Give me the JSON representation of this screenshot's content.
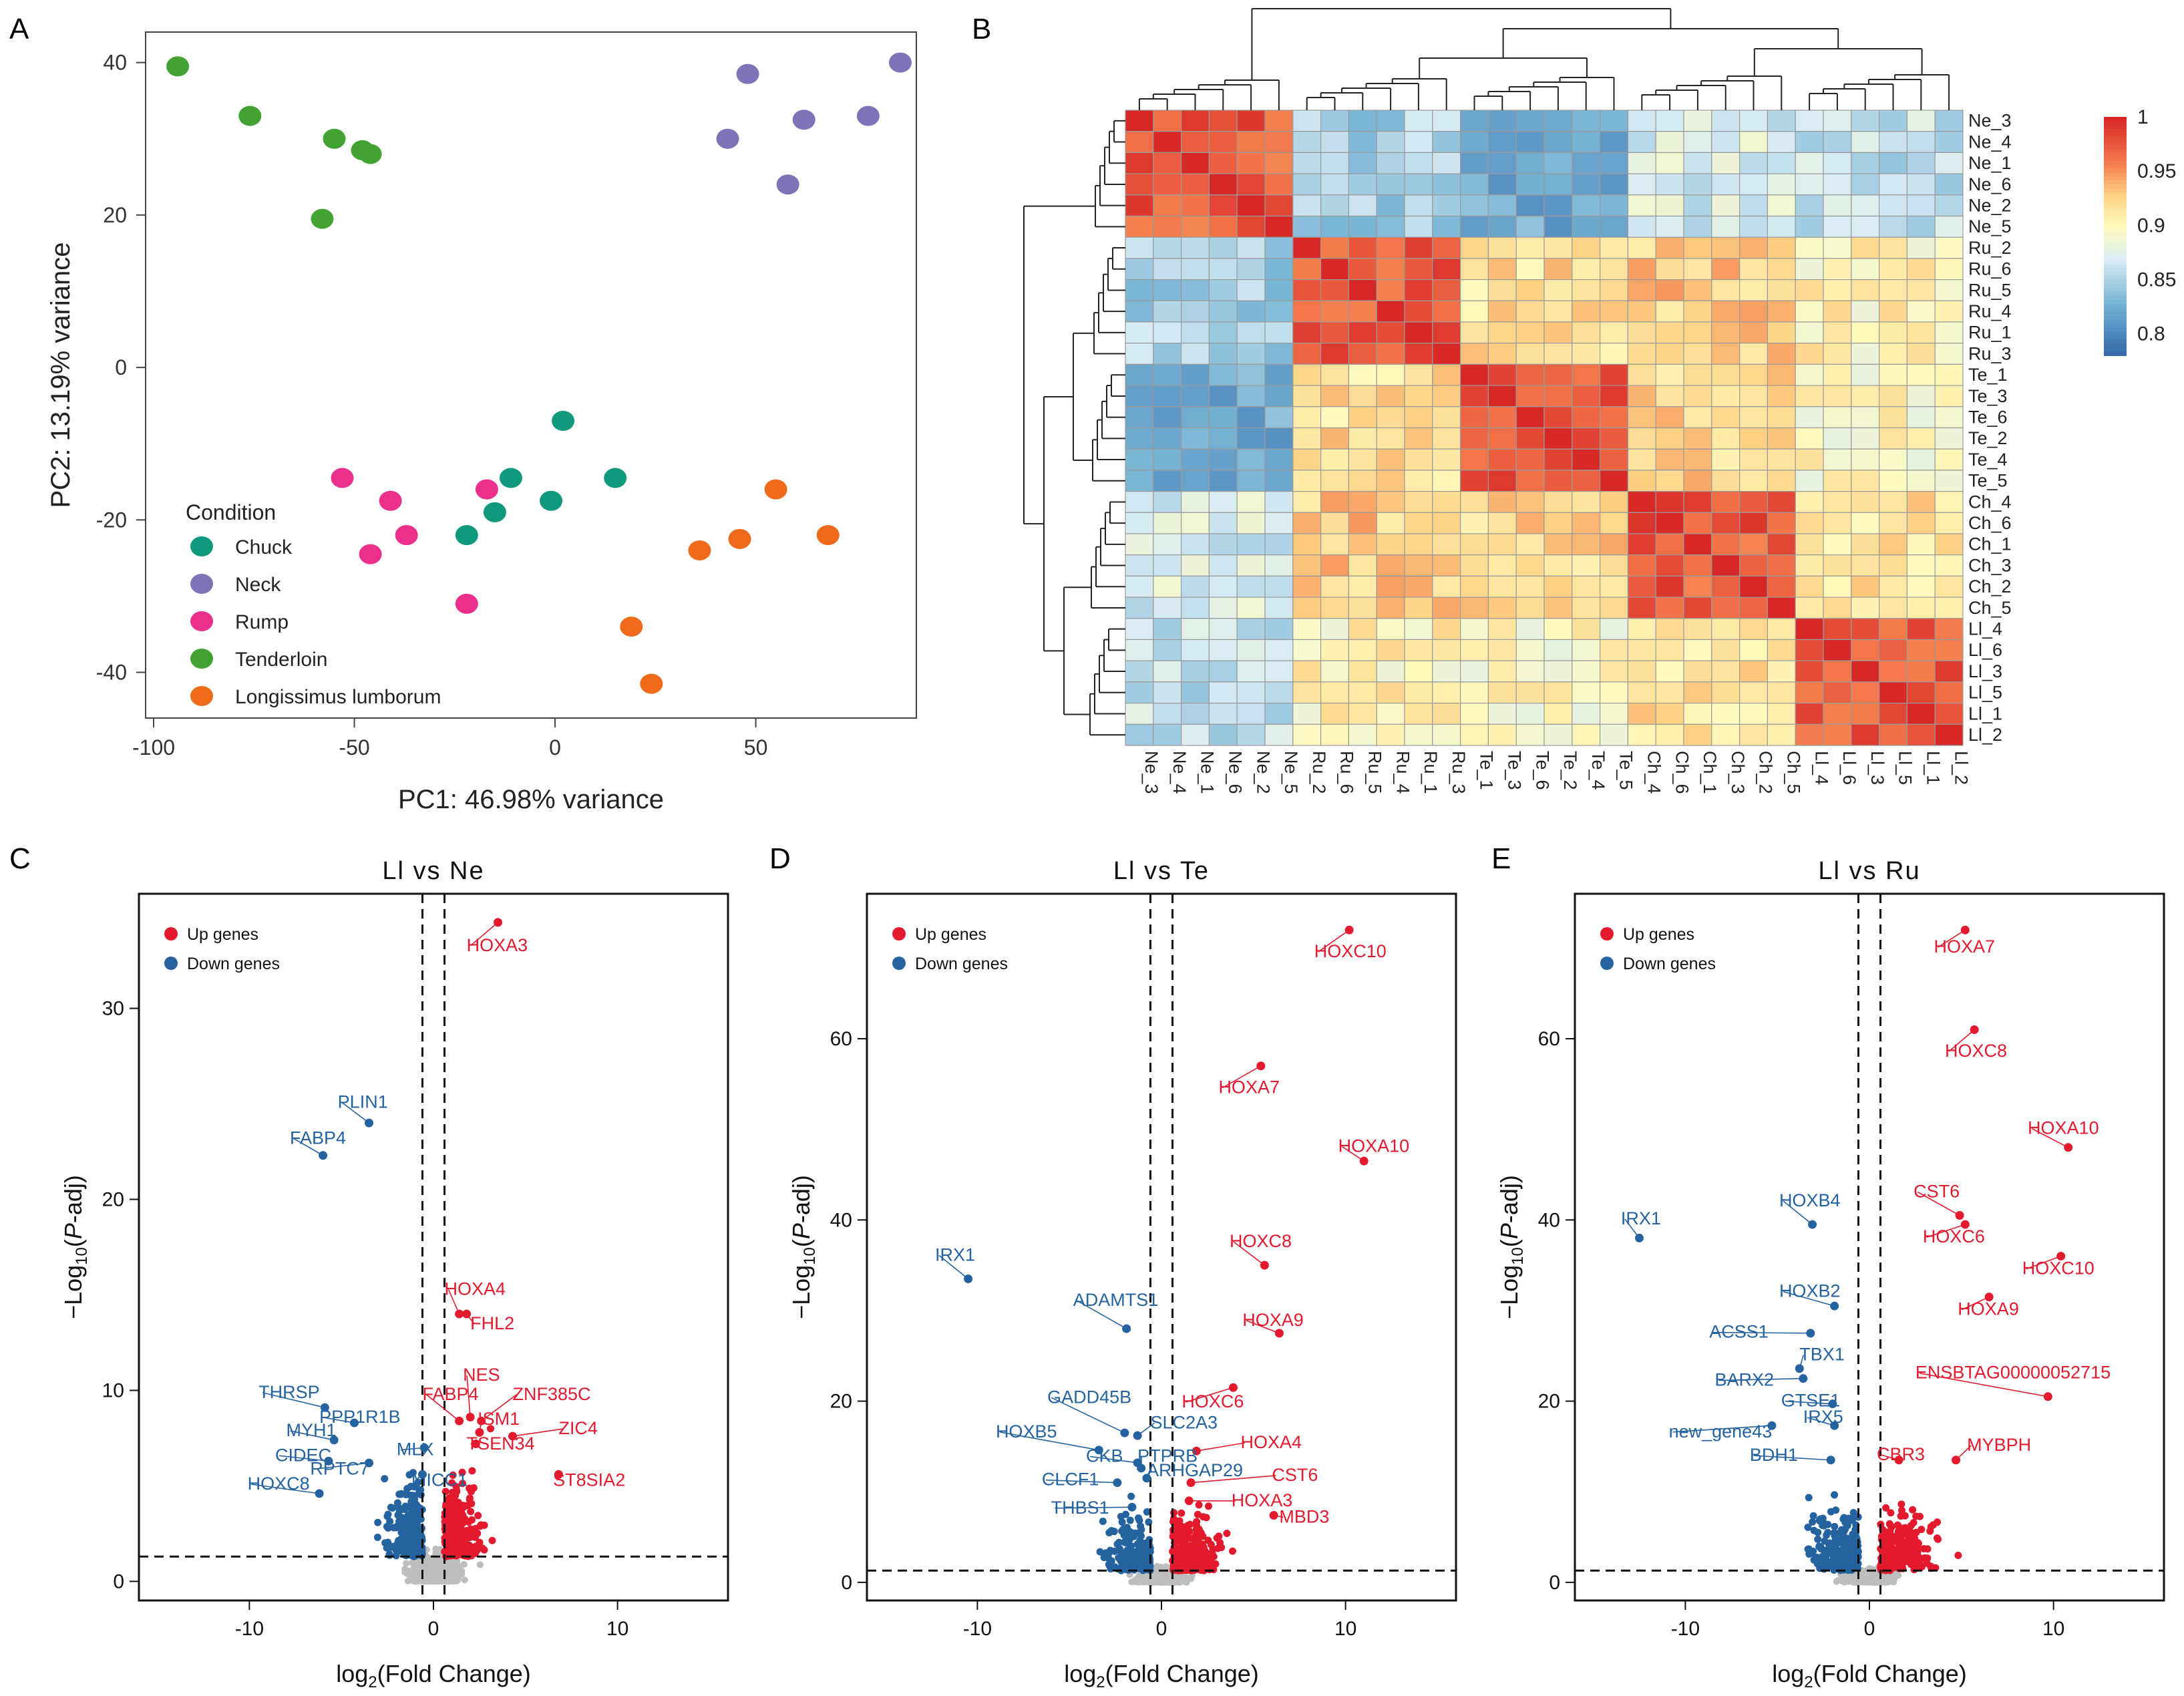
{
  "panels": {
    "a": "A",
    "b": "B",
    "c": "C",
    "d": "D",
    "e": "E"
  },
  "colors": {
    "chuck": "#0f9a7e",
    "neck": "#7d74b8",
    "rump": "#ea2f8c",
    "tenderloin": "#43a332",
    "longissimus": "#ef6a1a",
    "up": "#e31a2e",
    "down": "#2463a0",
    "ns": "#bdbdbd"
  },
  "chart_data": [
    {
      "type": "scatter",
      "id": "pca",
      "xlabel": "PC1: 46.98% variance",
      "ylabel": "PC2: 13.19% variance",
      "xlim": [
        -102,
        90
      ],
      "ylim": [
        -46,
        44
      ],
      "xticks": [
        -100,
        -50,
        0,
        50
      ],
      "yticks": [
        -40,
        -20,
        0,
        20,
        40
      ],
      "legend_title": "Condition",
      "legend_position": "bottom-left",
      "series": [
        {
          "name": "Chuck",
          "color": "#0f9a7e",
          "points": [
            [
              2,
              -7
            ],
            [
              -11,
              -14.5
            ],
            [
              -15,
              -19
            ],
            [
              -1,
              -17.5
            ],
            [
              15,
              -14.5
            ],
            [
              -22,
              -22
            ]
          ]
        },
        {
          "name": "Neck",
          "color": "#7d74b8",
          "points": [
            [
              48,
              38.5
            ],
            [
              86,
              40
            ],
            [
              43,
              30
            ],
            [
              62,
              32.5
            ],
            [
              78,
              33
            ],
            [
              58,
              24
            ]
          ]
        },
        {
          "name": "Rump",
          "color": "#ea2f8c",
          "points": [
            [
              -53,
              -14.5
            ],
            [
              -41,
              -17.5
            ],
            [
              -17,
              -16
            ],
            [
              -37,
              -22
            ],
            [
              -46,
              -24.5
            ],
            [
              -22,
              -31
            ]
          ]
        },
        {
          "name": "Tenderloin",
          "color": "#43a332",
          "points": [
            [
              -94,
              39.5
            ],
            [
              -76,
              33
            ],
            [
              -55,
              30
            ],
            [
              -48,
              28.5
            ],
            [
              -46,
              28
            ],
            [
              -58,
              19.5
            ]
          ]
        },
        {
          "name": "Longissimus lumborum",
          "color": "#ef6a1a",
          "points": [
            [
              55,
              -16
            ],
            [
              68,
              -22
            ],
            [
              46,
              -22.5
            ],
            [
              36,
              -24
            ],
            [
              19,
              -34
            ],
            [
              24,
              -41.5
            ]
          ]
        }
      ]
    },
    {
      "type": "heatmap",
      "id": "correlation",
      "labels": [
        "Ne_3",
        "Ne_4",
        "Ne_1",
        "Ne_6",
        "Ne_2",
        "Ne_5",
        "Ru_2",
        "Ru_6",
        "Ru_5",
        "Ru_4",
        "Ru_1",
        "Ru_3",
        "Te_1",
        "Te_3",
        "Te_6",
        "Te_2",
        "Te_4",
        "Te_5",
        "Ch_4",
        "Ch_6",
        "Ch_1",
        "Ch_3",
        "Ch_2",
        "Ch_5",
        "Ll_4",
        "Ll_6",
        "Ll_3",
        "Ll_5",
        "Ll_1",
        "Ll_2"
      ],
      "scale_ticks": [
        "1",
        "0.95",
        "0.9",
        "0.85",
        "0.8"
      ],
      "scale_range": [
        0.78,
        1
      ],
      "within_group": 0.975,
      "block_similarity": {
        "Ne": {
          "Ne": 0.975,
          "Ru": 0.85,
          "Te": 0.82,
          "Ch": 0.87,
          "Ll": 0.86
        },
        "Ru": {
          "Ne": 0.85,
          "Ru": 0.975,
          "Te": 0.92,
          "Ch": 0.93,
          "Ll": 0.905
        },
        "Te": {
          "Ne": 0.82,
          "Ru": 0.92,
          "Te": 0.975,
          "Ch": 0.925,
          "Ll": 0.9
        },
        "Ch": {
          "Ne": 0.87,
          "Ru": 0.93,
          "Te": 0.925,
          "Ch": 0.975,
          "Ll": 0.915
        },
        "Ll": {
          "Ne": 0.86,
          "Ru": 0.905,
          "Te": 0.9,
          "Ch": 0.915,
          "Ll": 0.975
        }
      }
    },
    {
      "type": "scatter",
      "id": "volcano_ne",
      "title": "Ll vs Ne",
      "xlabel": "log2(Fold Change)",
      "ylabel": "-Log10(P-adj)",
      "xlim": [
        -16,
        16
      ],
      "ylim": [
        -1,
        36
      ],
      "xticks": [
        -10,
        0,
        10
      ],
      "yticks": [
        0,
        10,
        20,
        30
      ],
      "fc_cut": 0.6,
      "p_cut": 1.3,
      "legend": [
        "Up genes",
        "Down genes"
      ],
      "up_labels": [
        {
          "name": "HOXA3",
          "x": 3.5,
          "y": 34.5,
          "lx": 1.8,
          "ly": 33
        },
        {
          "name": "HOXA4",
          "x": 1.4,
          "y": 14,
          "lx": 0.6,
          "ly": 15
        },
        {
          "name": "FHL2",
          "x": 1.8,
          "y": 14,
          "lx": 2.0,
          "ly": 13.2
        },
        {
          "name": "NES",
          "x": 2.0,
          "y": 8.6,
          "lx": 1.6,
          "ly": 10.5
        },
        {
          "name": "FABP4",
          "x": 1.4,
          "y": 8.4,
          "lx": -0.6,
          "ly": 9.5
        },
        {
          "name": "ZNF385C",
          "x": 2.6,
          "y": 8.4,
          "lx": 4.3,
          "ly": 9.5
        },
        {
          "name": "ISM1",
          "x": 2.5,
          "y": 7.8,
          "lx": 2.4,
          "ly": 8.2
        },
        {
          "name": "ZIC4",
          "x": 4.3,
          "y": 7.6,
          "lx": 6.8,
          "ly": 7.7
        },
        {
          "name": "TSEN34",
          "x": 2.3,
          "y": 7.2,
          "lx": 1.8,
          "ly": 6.9
        },
        {
          "name": "ST8SIA2",
          "x": 6.8,
          "y": 5.6,
          "lx": 6.5,
          "ly": 5.0
        }
      ],
      "down_labels": [
        {
          "name": "PLIN1",
          "x": -3.5,
          "y": 24,
          "lx": -5.2,
          "ly": 24.8
        },
        {
          "name": "FABP4",
          "x": -6,
          "y": 22.3,
          "lx": -7.8,
          "ly": 22.9
        },
        {
          "name": "THRSP",
          "x": -5.9,
          "y": 9.1,
          "lx": -9.5,
          "ly": 9.6
        },
        {
          "name": "PPP1R1B",
          "x": -4.3,
          "y": 8.3,
          "lx": -6.2,
          "ly": 8.3
        },
        {
          "name": "MYH1",
          "x": -5.4,
          "y": 7.4,
          "lx": -8.0,
          "ly": 7.6
        },
        {
          "name": "MLX",
          "x": -0.5,
          "y": 7.0,
          "lx": -2.0,
          "ly": 6.6
        },
        {
          "name": "CIDEC",
          "x": -5.7,
          "y": 6.3,
          "lx": -8.6,
          "ly": 6.3
        },
        {
          "name": "RPTC7",
          "x": -3.5,
          "y": 6.2,
          "lx": -6.7,
          "ly": 5.6
        },
        {
          "name": "MICC1",
          "x": -0.6,
          "y": 5.6,
          "lx": -1.2,
          "ly": 5.0
        },
        {
          "name": "HOXC8",
          "x": -6.2,
          "y": 4.6,
          "lx": -10.1,
          "ly": 4.8
        }
      ]
    },
    {
      "type": "scatter",
      "id": "volcano_te",
      "title": "Ll vs Te",
      "xlabel": "log2(Fold Change)",
      "ylabel": "-Log10(P-adj)",
      "xlim": [
        -16,
        16
      ],
      "ylim": [
        -2,
        76
      ],
      "xticks": [
        -10,
        0,
        10
      ],
      "yticks": [
        0,
        20,
        40,
        60
      ],
      "fc_cut": 0.6,
      "p_cut": 1.3,
      "legend": [
        "Up genes",
        "Down genes"
      ],
      "up_labels": [
        {
          "name": "HOXC10",
          "x": 10.2,
          "y": 72,
          "lx": 8.3,
          "ly": 69
        },
        {
          "name": "HOXA7",
          "x": 5.4,
          "y": 57,
          "lx": 3.1,
          "ly": 54
        },
        {
          "name": "HOXA10",
          "x": 11,
          "y": 46.5,
          "lx": 9.6,
          "ly": 47.5
        },
        {
          "name": "HOXC8",
          "x": 5.6,
          "y": 35,
          "lx": 3.7,
          "ly": 37
        },
        {
          "name": "HOXA9",
          "x": 6.4,
          "y": 27.5,
          "lx": 4.4,
          "ly": 28.3
        },
        {
          "name": "HOXC6",
          "x": 3.9,
          "y": 21.5,
          "lx": 1.1,
          "ly": 19.3
        },
        {
          "name": "HOXA4",
          "x": 1.9,
          "y": 14.5,
          "lx": 4.3,
          "ly": 14.8
        },
        {
          "name": "CST6",
          "x": 1.6,
          "y": 11.0,
          "lx": 6.0,
          "ly": 11.2
        },
        {
          "name": "HOXA3",
          "x": 1.5,
          "y": 9.0,
          "lx": 3.8,
          "ly": 8.4
        },
        {
          "name": "MBD3",
          "x": 6.1,
          "y": 7.4,
          "lx": 6.4,
          "ly": 6.6
        }
      ],
      "down_labels": [
        {
          "name": "IRX1",
          "x": -10.5,
          "y": 33.5,
          "lx": -12.3,
          "ly": 35.5
        },
        {
          "name": "ADAMTS1",
          "x": -1.9,
          "y": 28,
          "lx": -4.8,
          "ly": 30.5
        },
        {
          "name": "GADD45B",
          "x": -2.0,
          "y": 16.5,
          "lx": -6.2,
          "ly": 19.8
        },
        {
          "name": "SLC2A3",
          "x": -1.3,
          "y": 16.2,
          "lx": -0.6,
          "ly": 17.0
        },
        {
          "name": "HOXB5",
          "x": -3.4,
          "y": 14.6,
          "lx": -9.0,
          "ly": 16.0
        },
        {
          "name": "CKB",
          "x": -1.3,
          "y": 13.2,
          "lx": -4.1,
          "ly": 13.3
        },
        {
          "name": "PTPRB",
          "x": -1.1,
          "y": 12.6,
          "lx": -1.3,
          "ly": 13.3
        },
        {
          "name": "ARHGAP29",
          "x": -0.8,
          "y": 11.5,
          "lx": -0.8,
          "ly": 11.7
        },
        {
          "name": "CLCF1",
          "x": -2.4,
          "y": 11.0,
          "lx": -6.5,
          "ly": 10.7
        },
        {
          "name": "THBS1",
          "x": -1.6,
          "y": 8.3,
          "lx": -6.0,
          "ly": 7.6
        }
      ]
    },
    {
      "type": "scatter",
      "id": "volcano_ru",
      "title": "Ll vs Ru",
      "xlabel": "log2(Fold Change)",
      "ylabel": "-Log10(P-adj)",
      "xlim": [
        -16,
        16
      ],
      "ylim": [
        -2,
        76
      ],
      "xticks": [
        -10,
        0,
        10
      ],
      "yticks": [
        0,
        20,
        40,
        60
      ],
      "fc_cut": 0.6,
      "p_cut": 1.3,
      "legend": [
        "Up genes",
        "Down genes"
      ],
      "up_labels": [
        {
          "name": "HOXA7",
          "x": 5.2,
          "y": 72,
          "lx": 3.5,
          "ly": 69.5
        },
        {
          "name": "HOXC8",
          "x": 5.7,
          "y": 61,
          "lx": 4.1,
          "ly": 58
        },
        {
          "name": "HOXA10",
          "x": 10.8,
          "y": 48,
          "lx": 8.6,
          "ly": 49.5
        },
        {
          "name": "CST6",
          "x": 4.9,
          "y": 40.5,
          "lx": 2.4,
          "ly": 42.5
        },
        {
          "name": "HOXC6",
          "x": 5.2,
          "y": 39.5,
          "lx": 2.9,
          "ly": 37.5
        },
        {
          "name": "HOXC10",
          "x": 10.4,
          "y": 36,
          "lx": 8.3,
          "ly": 34
        },
        {
          "name": "HOXA9",
          "x": 6.5,
          "y": 31.5,
          "lx": 4.8,
          "ly": 29.5
        },
        {
          "name": "ENSBTAG00000052715",
          "x": 9.7,
          "y": 20.5,
          "lx": 2.5,
          "ly": 22.5
        },
        {
          "name": "MYBPH",
          "x": 4.7,
          "y": 13.5,
          "lx": 5.3,
          "ly": 14.5
        },
        {
          "name": "CBR3",
          "x": 1.6,
          "y": 13.5,
          "lx": 0.4,
          "ly": 13.5
        }
      ],
      "down_labels": [
        {
          "name": "IRX1",
          "x": -12.5,
          "y": 38,
          "lx": -13.5,
          "ly": 39.5
        },
        {
          "name": "HOXB4",
          "x": -3.1,
          "y": 39.5,
          "lx": -4.9,
          "ly": 41.5
        },
        {
          "name": "HOXB2",
          "x": -1.9,
          "y": 30.5,
          "lx": -4.9,
          "ly": 31.5
        },
        {
          "name": "ACSS1",
          "x": -3.2,
          "y": 27.5,
          "lx": -8.7,
          "ly": 27.0
        },
        {
          "name": "TBX1",
          "x": -3.8,
          "y": 23.6,
          "lx": -3.8,
          "ly": 24.5
        },
        {
          "name": "BARX2",
          "x": -3.6,
          "y": 22.5,
          "lx": -8.4,
          "ly": 21.7
        },
        {
          "name": "GTSE1",
          "x": -2.0,
          "y": 19.7,
          "lx": -4.8,
          "ly": 19.4
        },
        {
          "name": "IRX5",
          "x": -1.9,
          "y": 17.3,
          "lx": -3.6,
          "ly": 17.6
        },
        {
          "name": "new_gene43",
          "x": -5.3,
          "y": 17.3,
          "lx": -10.9,
          "ly": 16.0
        },
        {
          "name": "BDH1",
          "x": -2.1,
          "y": 13.5,
          "lx": -6.5,
          "ly": 13.4
        }
      ]
    }
  ]
}
